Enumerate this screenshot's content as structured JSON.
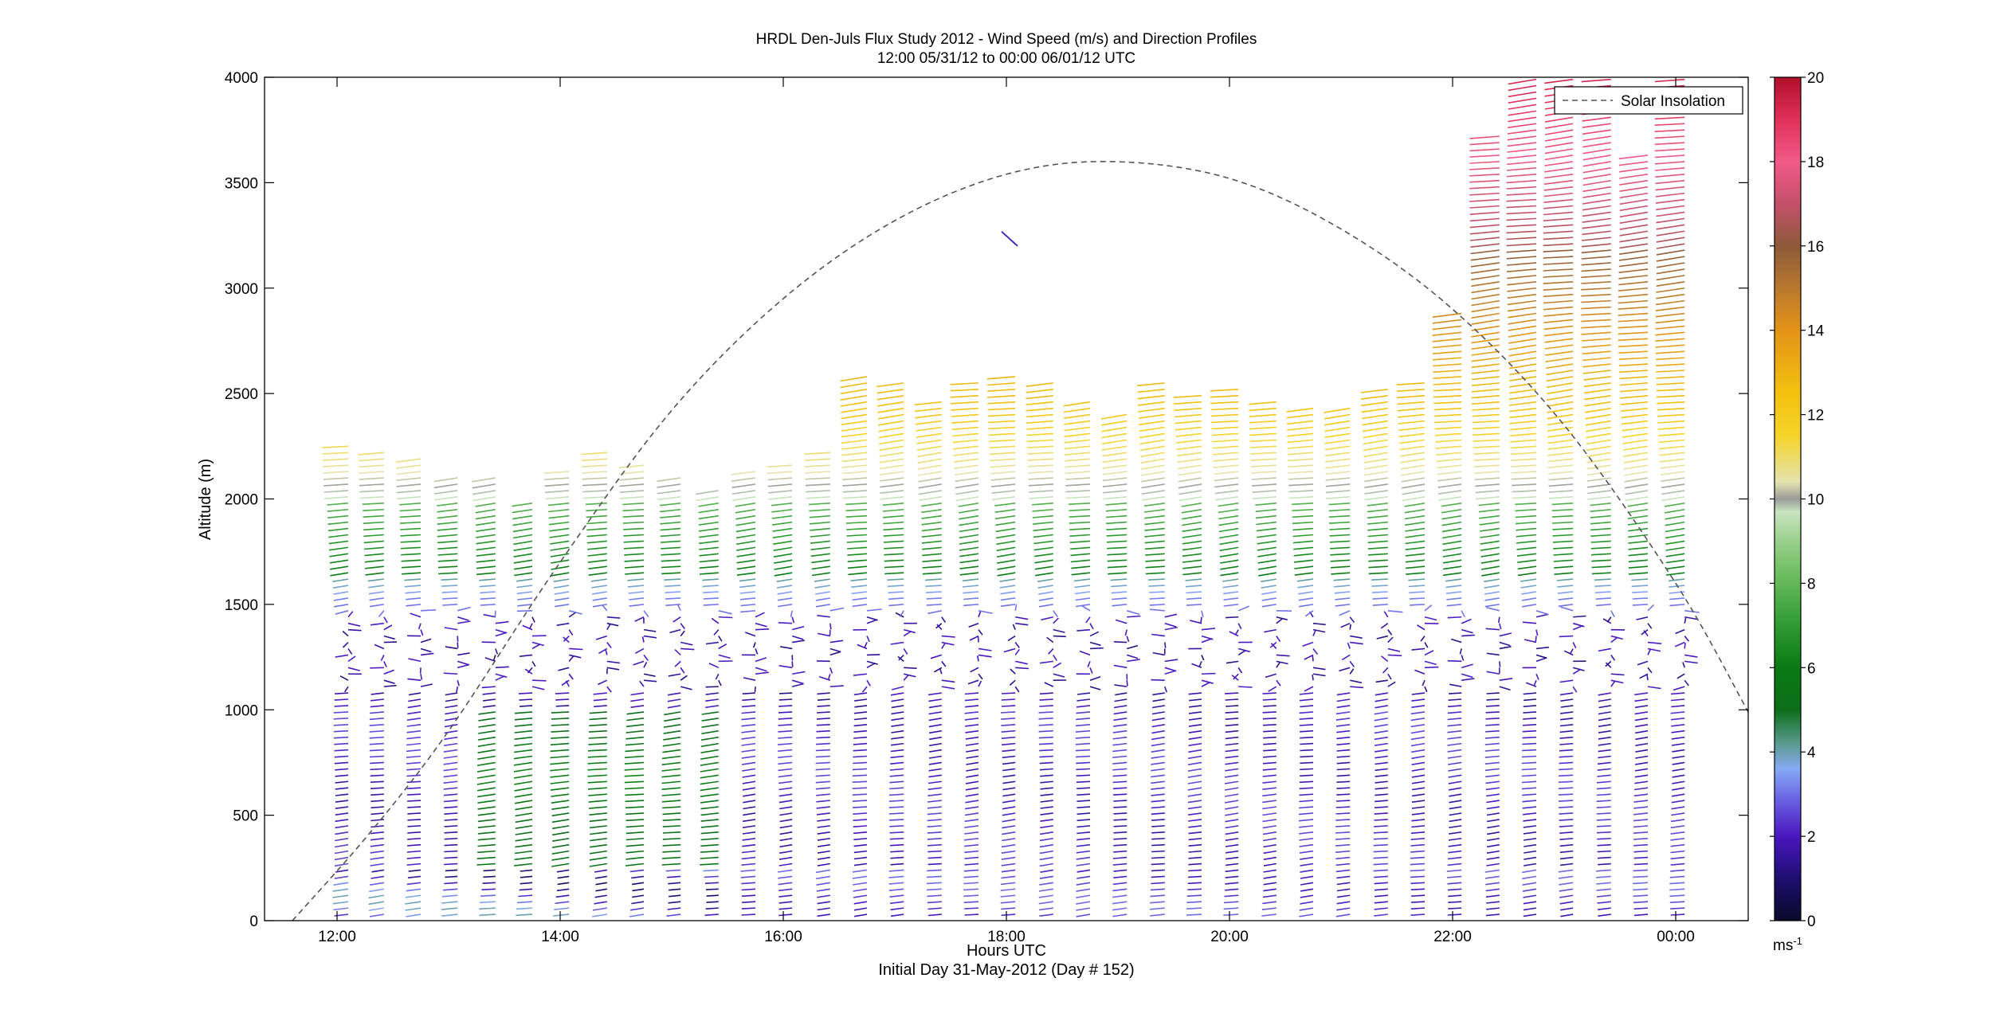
{
  "chart_data": {
    "type": "wind_barb_profile",
    "title": "HRDL Den-Juls Flux Study 2012 - Wind Speed (m/s) and Direction Profiles",
    "subtitle": "12:00 05/31/12 to 00:00 06/01/12  UTC",
    "xlabel": "Hours UTC",
    "xlabel2": "Initial Day 31-May-2012 (Day # 152)",
    "ylabel": "Altitude (m)",
    "xlim_hours": [
      11.35,
      24.65
    ],
    "ylim": [
      0,
      4000
    ],
    "xticks": [
      {
        "h": 12,
        "label": "12:00"
      },
      {
        "h": 14,
        "label": "14:00"
      },
      {
        "h": 16,
        "label": "16:00"
      },
      {
        "h": 18,
        "label": "18:00"
      },
      {
        "h": 20,
        "label": "20:00"
      },
      {
        "h": 22,
        "label": "22:00"
      },
      {
        "h": 24,
        "label": "00:00"
      }
    ],
    "yticks": [
      0,
      500,
      1000,
      1500,
      2000,
      2500,
      3000,
      3500,
      4000
    ],
    "legend": {
      "label": "Solar Insolation",
      "placement": "top-right",
      "style": "dashed"
    },
    "solar_insolation": {
      "peak_hour": 18.95,
      "peak_value_m_equiv": 3600,
      "points": [
        [
          11.6,
          0
        ],
        [
          12.3,
          420
        ],
        [
          13.0,
          900
        ],
        [
          14.0,
          1700
        ],
        [
          15.0,
          2420
        ],
        [
          16.0,
          2950
        ],
        [
          17.0,
          3320
        ],
        [
          18.0,
          3540
        ],
        [
          18.95,
          3600
        ],
        [
          20.0,
          3520
        ],
        [
          21.0,
          3280
        ],
        [
          22.0,
          2900
        ],
        [
          23.0,
          2350
        ],
        [
          24.0,
          1600
        ],
        [
          24.65,
          990
        ]
      ]
    },
    "profile_times_h": [
      12.1,
      12.42,
      12.75,
      13.08,
      13.42,
      13.75,
      14.08,
      14.42,
      14.75,
      15.08,
      15.42,
      15.75,
      16.08,
      16.42,
      16.75,
      17.08,
      17.42,
      17.75,
      18.08,
      18.42,
      18.75,
      19.08,
      19.42,
      19.75,
      20.08,
      20.42,
      20.75,
      21.08,
      21.42,
      21.75,
      22.08,
      22.42,
      22.75,
      23.08,
      23.42,
      23.75,
      24.08
    ],
    "profile_tops_m": [
      2260,
      2220,
      2200,
      2110,
      2110,
      1980,
      2130,
      2230,
      2170,
      2120,
      2060,
      2130,
      2180,
      2220,
      2600,
      2550,
      2480,
      2560,
      2600,
      2560,
      2460,
      2420,
      2570,
      2500,
      2520,
      2480,
      2430,
      2430,
      2520,
      2550,
      2880,
      3740,
      4000,
      4000,
      4000,
      3630,
      4000
    ],
    "colorbar": {
      "label": "ms-1",
      "min": 0,
      "max": 20,
      "ticks": [
        0,
        2,
        4,
        6,
        8,
        10,
        12,
        14,
        16,
        18,
        20
      ],
      "stops": [
        {
          "v": 0,
          "c": "#0a0a2a"
        },
        {
          "v": 1,
          "c": "#1e0e70"
        },
        {
          "v": 2,
          "c": "#4a16c0"
        },
        {
          "v": 3,
          "c": "#6f6ee6"
        },
        {
          "v": 3.6,
          "c": "#86aaf4"
        },
        {
          "v": 4.2,
          "c": "#5a9a90"
        },
        {
          "v": 5,
          "c": "#0d6e1a"
        },
        {
          "v": 6,
          "c": "#0a7a14"
        },
        {
          "v": 7,
          "c": "#2f9a30"
        },
        {
          "v": 8,
          "c": "#62b856"
        },
        {
          "v": 9,
          "c": "#9ad08c"
        },
        {
          "v": 9.7,
          "c": "#c8e4c0"
        },
        {
          "v": 10,
          "c": "#9a9a9a"
        },
        {
          "v": 10.4,
          "c": "#e4e2b0"
        },
        {
          "v": 11.5,
          "c": "#f6d428"
        },
        {
          "v": 12.5,
          "c": "#f2c10e"
        },
        {
          "v": 14,
          "c": "#e49318"
        },
        {
          "v": 15,
          "c": "#b9782e"
        },
        {
          "v": 16,
          "c": "#8c5a3a"
        },
        {
          "v": 17,
          "c": "#c4506a"
        },
        {
          "v": 18,
          "c": "#f05a86"
        },
        {
          "v": 19,
          "c": "#e0305a"
        },
        {
          "v": 20,
          "c": "#b0102a"
        }
      ]
    }
  }
}
